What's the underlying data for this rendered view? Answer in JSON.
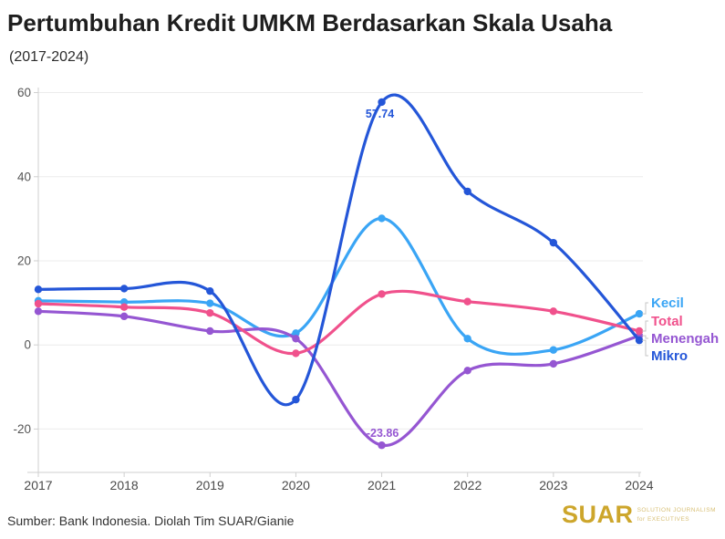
{
  "title": "Pertumbuhan Kredit UMKM Berdasarkan Skala Usaha",
  "subtitle": "(2017-2024)",
  "source": "Sumber: Bank Indonesia. Diolah Tim SUAR/Gianie",
  "logo": {
    "name": "SUAR",
    "tagline_line1": "SOLUTION JOURNALISM",
    "tagline_line2": "for EXECUTIVES",
    "color": "#cda62c"
  },
  "chart_data": {
    "type": "line",
    "x": [
      2017,
      2018,
      2019,
      2020,
      2021,
      2022,
      2023,
      2024
    ],
    "series": [
      {
        "name": "Kecil",
        "color": "#3aa5f5",
        "values": [
          10.5,
          10.2,
          9.9,
          2.8,
          30.1,
          1.5,
          -1.2,
          7.4
        ]
      },
      {
        "name": "Total",
        "color": "#f0518c",
        "values": [
          9.8,
          9.0,
          7.6,
          -2.0,
          12.1,
          10.3,
          8.0,
          3.3
        ]
      },
      {
        "name": "Menengah",
        "color": "#9556d2",
        "values": [
          8.0,
          6.8,
          3.3,
          1.5,
          -23.86,
          -6.1,
          -4.5,
          2.2
        ]
      },
      {
        "name": "Mikro",
        "color": "#2456d8",
        "values": [
          13.2,
          13.4,
          12.8,
          -13.0,
          57.74,
          36.5,
          24.3,
          1.1
        ]
      }
    ],
    "point_labels": [
      {
        "series": "Mikro",
        "x": 2021,
        "text": "57.74"
      },
      {
        "series": "Menengah",
        "x": 2021,
        "text": "-23.86"
      }
    ],
    "yticks": [
      60,
      40,
      20,
      0,
      -20
    ],
    "ylim": [
      -30,
      62
    ],
    "xlabel": "",
    "ylabel": "",
    "grid": "horizontal",
    "legend_position": "right-of-line-ends",
    "legend_order": [
      "Kecil",
      "Total",
      "Menengah",
      "Mikro"
    ]
  }
}
